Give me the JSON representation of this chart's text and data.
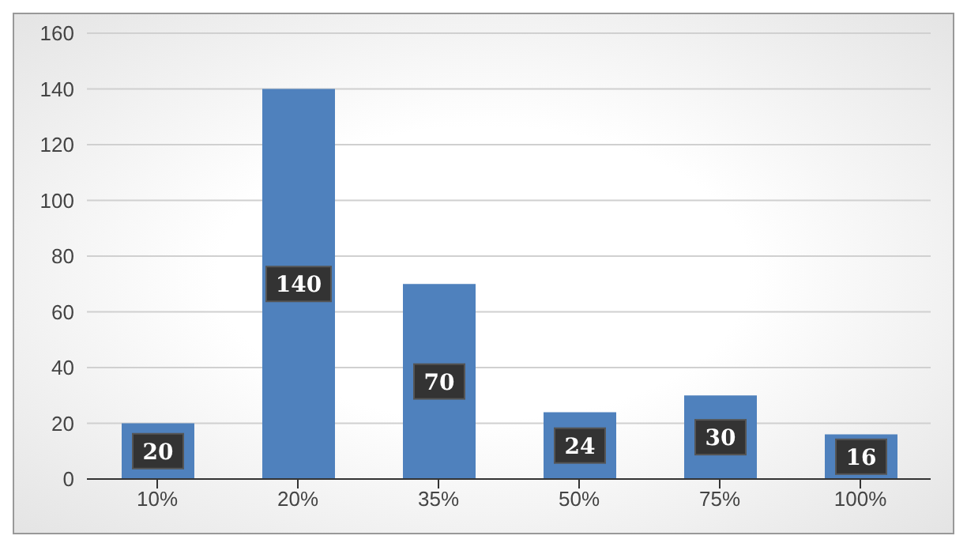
{
  "chart_data": {
    "type": "bar",
    "categories": [
      "10%",
      "20%",
      "35%",
      "50%",
      "75%",
      "100%"
    ],
    "values": [
      20,
      140,
      70,
      24,
      30,
      16
    ],
    "color": "#4f81bd",
    "ylim": [
      0,
      160
    ],
    "yticks": [
      0,
      20,
      40,
      60,
      80,
      100,
      120,
      140,
      160
    ],
    "grid": "y",
    "data_labels": true
  }
}
